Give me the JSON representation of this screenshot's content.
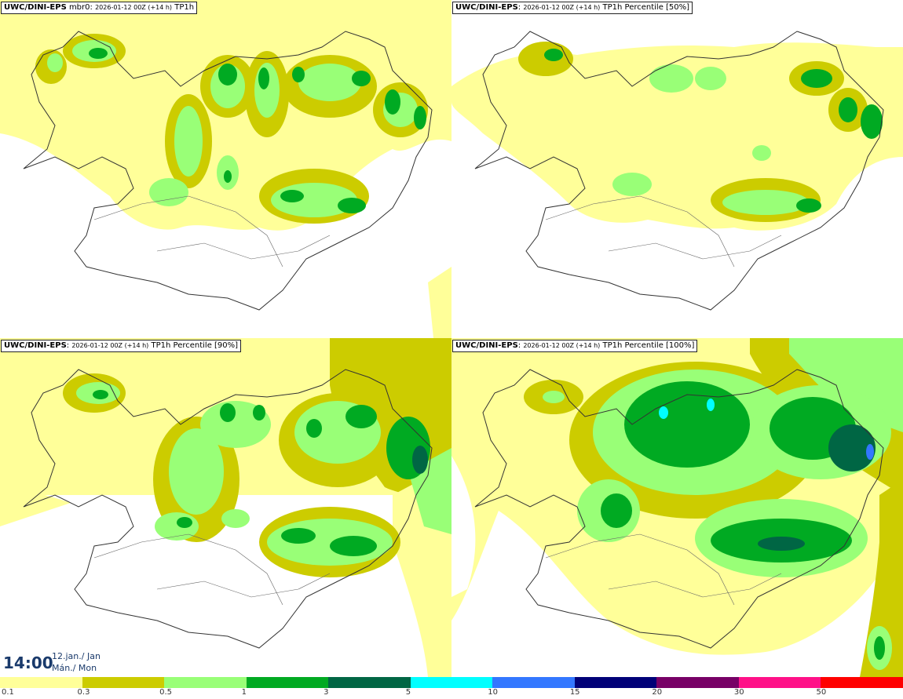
{
  "panels": [
    {
      "model": "UWC/DINI-EPS",
      "sep": " ",
      "member": "mbr0",
      "run": "2026-01-12 00Z (+14 h)",
      "product": "TP1h"
    },
    {
      "model": "UWC/DINI-EPS",
      "sep": ":",
      "member": "",
      "run": "2026-01-12 00Z (+14 h)",
      "product": "TP1h Percentile [50%]"
    },
    {
      "model": "UWC/DINI-EPS",
      "sep": ":",
      "member": "",
      "run": "2026-01-12 00Z (+14 h)",
      "product": "TP1h Percentile [90%]"
    },
    {
      "model": "UWC/DINI-EPS",
      "sep": ":",
      "member": "",
      "run": "2026-01-12 00Z (+14 h)",
      "product": "TP1h Percentile [100%]"
    }
  ],
  "valid_time": {
    "time": "14:00",
    "date_line1": "12.jan./ Jan",
    "date_line2": "Mán./ Mon"
  },
  "colorbar": {
    "labels": [
      "0.1",
      "0.3",
      "0.5",
      "1",
      "3",
      "5",
      "10",
      "15",
      "20",
      "30",
      "50"
    ],
    "colors": [
      "#ffff99",
      "#cccc00",
      "#99ff77",
      "#00aa22",
      "#006644",
      "#00ffff",
      "#3377ff",
      "#000077",
      "#770066",
      "#ff1188",
      "#ff0000"
    ]
  }
}
